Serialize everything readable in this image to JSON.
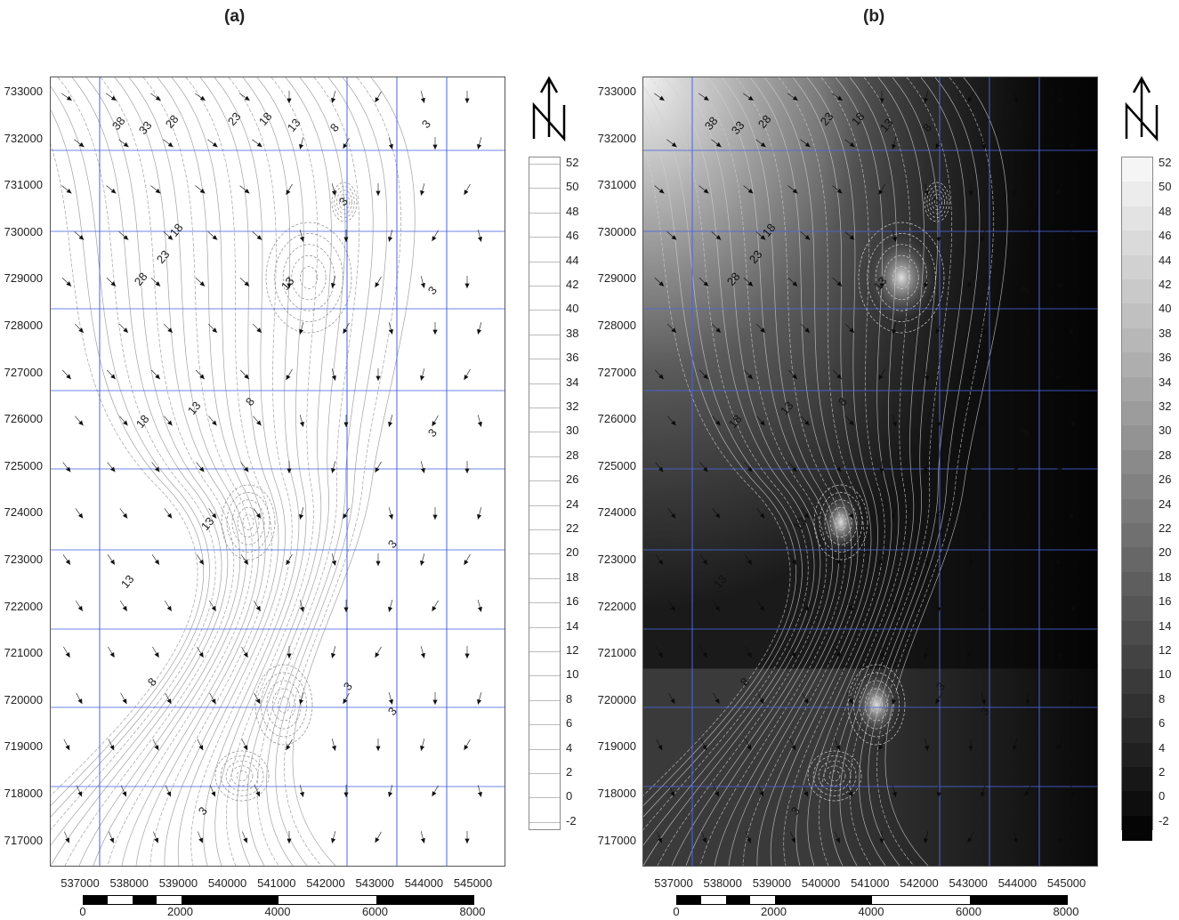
{
  "panels": [
    {
      "id": "a",
      "label": "(a)",
      "style": "contour-lines"
    },
    {
      "id": "b",
      "label": "(b)",
      "style": "filled-grayscale"
    }
  ],
  "axes": {
    "x_ticks": [
      "537000",
      "538000",
      "539000",
      "540000",
      "541000",
      "542000",
      "543000",
      "544000",
      "545000"
    ],
    "y_ticks": [
      "733000",
      "732000",
      "731000",
      "730000",
      "729000",
      "728000",
      "727000",
      "726000",
      "725000",
      "724000",
      "723000",
      "722000",
      "721000",
      "720000",
      "719000",
      "718000",
      "717000"
    ]
  },
  "colorbar": {
    "ticks": [
      "52",
      "50",
      "48",
      "46",
      "44",
      "42",
      "40",
      "38",
      "36",
      "34",
      "32",
      "30",
      "28",
      "26",
      "24",
      "22",
      "20",
      "18",
      "16",
      "14",
      "12",
      "10",
      "8",
      "6",
      "4",
      "2",
      "0",
      "-2"
    ]
  },
  "scalebar": {
    "labels": [
      "0",
      "2000",
      "4000",
      "6000",
      "8000"
    ]
  },
  "north_arrow": {
    "icon": "north-arrow-icon",
    "letter": "N"
  },
  "contour_labels": [
    {
      "text": "38"
    },
    {
      "text": "33"
    },
    {
      "text": "28"
    },
    {
      "text": "23"
    },
    {
      "text": "18"
    },
    {
      "text": "13"
    },
    {
      "text": "8"
    },
    {
      "text": "3"
    }
  ],
  "colors": {
    "gridline": "#4a66e0",
    "contour": "#777777",
    "frame": "#555555"
  }
}
